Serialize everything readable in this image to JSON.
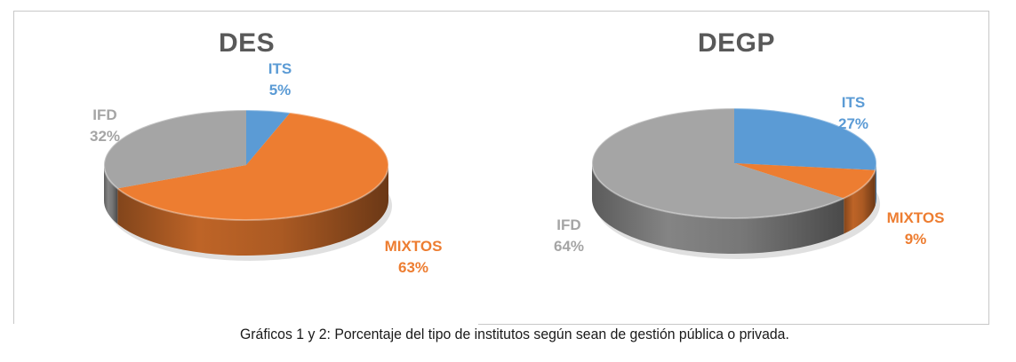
{
  "chart_data": [
    {
      "type": "pie",
      "title": "DES",
      "slices": [
        {
          "name": "ITS",
          "value": 5,
          "label": "5%",
          "color": "#5b9bd5"
        },
        {
          "name": "MIXTOS",
          "value": 63,
          "label": "63%",
          "color": "#ed7d31"
        },
        {
          "name": "IFD",
          "value": 32,
          "label": "32%",
          "color": "#a5a5a5"
        }
      ]
    },
    {
      "type": "pie",
      "title": "DEGP",
      "slices": [
        {
          "name": "ITS",
          "value": 27,
          "label": "27%",
          "color": "#5b9bd5"
        },
        {
          "name": "MIXTOS",
          "value": 9,
          "label": "9%",
          "color": "#ed7d31"
        },
        {
          "name": "IFD",
          "value": 64,
          "label": "64%",
          "color": "#a5a5a5"
        }
      ]
    }
  ],
  "caption": "Gráficos 1 y 2: Porcentaje del tipo de institutos según sean de gestión pública o privada."
}
